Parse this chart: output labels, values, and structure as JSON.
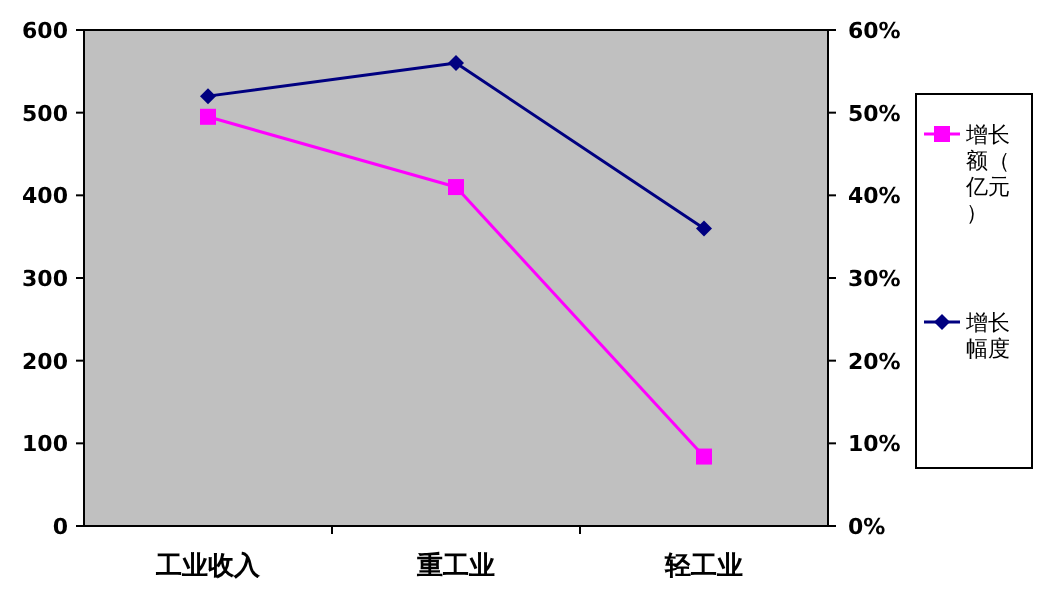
{
  "chart_data": {
    "type": "line",
    "categories": [
      "工业收入",
      "重工业",
      "轻工业"
    ],
    "series": [
      {
        "name": "增长额（亿元）",
        "color": "#ff00ff",
        "values": [
          495,
          410,
          84
        ],
        "marker": "square"
      },
      {
        "name": "增长幅度",
        "color": "#000080",
        "values": [
          52,
          56,
          36
        ],
        "axis": "y2",
        "marker": "diamond"
      }
    ],
    "ylim": [
      0,
      600
    ],
    "yticks": [
      0,
      100,
      200,
      300,
      400,
      500,
      600
    ],
    "y2lim": [
      0,
      60
    ],
    "y2ticks": [
      {
        "value": 0,
        "label": "0%"
      },
      {
        "value": 10,
        "label": "10%"
      },
      {
        "value": 20,
        "label": "20%"
      },
      {
        "value": 30,
        "label": "30%"
      },
      {
        "value": 40,
        "label": "40%"
      },
      {
        "value": 50,
        "label": "50%"
      },
      {
        "value": 60,
        "label": "60%"
      }
    ],
    "legend": "right",
    "grid": false
  }
}
